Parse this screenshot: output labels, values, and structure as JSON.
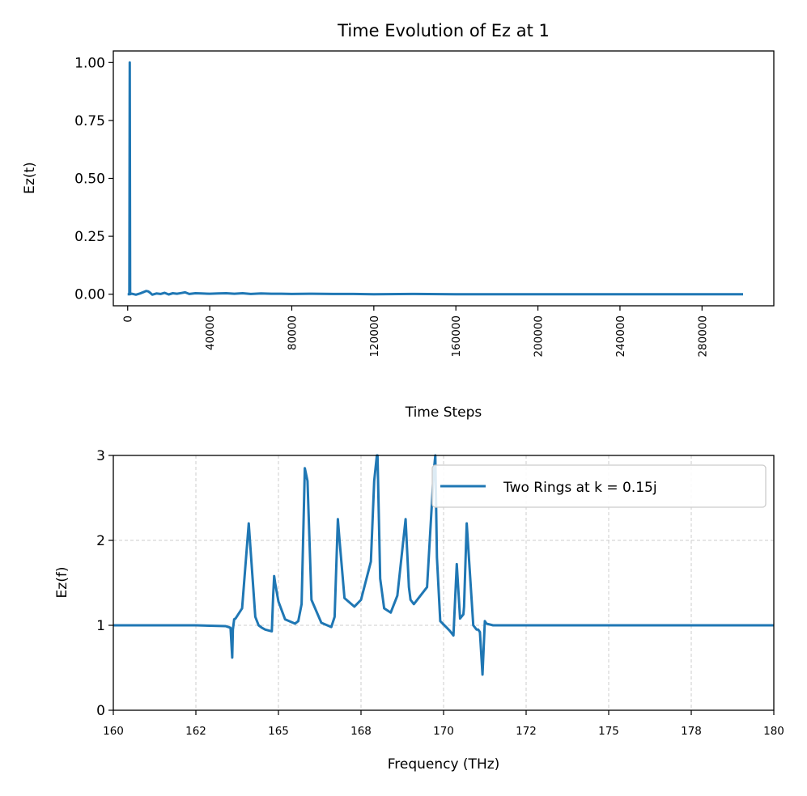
{
  "colors": {
    "line": "#1f77b4",
    "grid": "#cccccc",
    "axes": "#000000",
    "background": "#ffffff"
  },
  "chart_data": [
    {
      "type": "line",
      "title": "Time Evolution of Ez at 1",
      "xlabel": "Time Steps",
      "ylabel": "Ez(t)",
      "xlim": [
        -7000,
        315000
      ],
      "ylim": [
        -0.05,
        1.05
      ],
      "xticks": [
        0,
        40000,
        80000,
        120000,
        160000,
        200000,
        240000,
        280000
      ],
      "xtick_labels": [
        "0",
        "40000",
        "80000",
        "120000",
        "160000",
        "200000",
        "240000",
        "280000"
      ],
      "xtick_rotation": 90,
      "yticks": [
        0,
        0.25,
        0.5,
        0.75,
        1.0
      ],
      "ytick_labels": [
        "0.00",
        "0.25",
        "0.50",
        "0.75",
        "1.00"
      ],
      "grid": false,
      "series": [
        {
          "x": [
            0,
            800,
            1000,
            1200,
            2000,
            4000,
            6000,
            8000,
            9000,
            10000,
            11000,
            12000,
            14000,
            16000,
            18000,
            20000,
            22000,
            24000,
            26000,
            28000,
            30000,
            33000,
            36000,
            40000,
            44000,
            48000,
            52000,
            56000,
            60000,
            65000,
            70000,
            75000,
            80000,
            90000,
            100000,
            110000,
            120000,
            140000,
            160000,
            200000,
            240000,
            280000,
            300000
          ],
          "y": [
            0,
            0,
            1.0,
            0,
            0.002,
            -0.002,
            0.003,
            0.01,
            0.014,
            0.012,
            0.006,
            -0.002,
            0.003,
            0.001,
            0.006,
            -0.001,
            0.004,
            0.002,
            0.005,
            0.008,
            0.001,
            0.004,
            0.003,
            0.002,
            0.003,
            0.004,
            0.002,
            0.004,
            0.001,
            0.003,
            0.002,
            0.002,
            0.001,
            0.002,
            0.001,
            0.001,
            0.0,
            0.001,
            0.0,
            0.0,
            0.0,
            0.0,
            0.0
          ]
        }
      ]
    },
    {
      "type": "line",
      "title": "",
      "xlabel": "Frequency (THz)",
      "ylabel": "Ez(f)",
      "xlim": [
        160,
        180
      ],
      "ylim": [
        0,
        3
      ],
      "xticks": [
        160,
        162.5,
        165,
        167.5,
        170,
        172.5,
        175,
        177.5,
        180
      ],
      "xtick_labels": [
        "160",
        "162",
        "165",
        "168",
        "170",
        "172",
        "175",
        "178",
        "180"
      ],
      "yticks": [
        0,
        1,
        2,
        3
      ],
      "ytick_labels": [
        "0",
        "1",
        "2",
        "3"
      ],
      "grid": true,
      "legend_position": "top-right",
      "series": [
        {
          "name": "Two Rings at k = 0.15j",
          "x": [
            160,
            162.5,
            163.4,
            163.55,
            163.6,
            163.62,
            163.66,
            163.7,
            163.9,
            164.1,
            164.3,
            164.4,
            164.5,
            164.6,
            164.8,
            164.84,
            164.87,
            164.9,
            165.0,
            165.2,
            165.5,
            165.6,
            165.7,
            165.8,
            165.88,
            166.0,
            166.3,
            166.6,
            166.7,
            166.8,
            166.85,
            167.0,
            167.3,
            167.5,
            167.8,
            167.9,
            167.98,
            168.0,
            168.08,
            168.2,
            168.4,
            168.6,
            168.85,
            168.95,
            169.0,
            169.1,
            169.5,
            169.7,
            169.75,
            169.8,
            169.9,
            170.1,
            170.2,
            170.3,
            170.4,
            170.5,
            170.6,
            170.62,
            170.7,
            170.9,
            171.0,
            171.05,
            171.1,
            171.18,
            171.25,
            171.3,
            171.5,
            172,
            175,
            180
          ],
          "y": [
            1,
            1,
            0.99,
            0.97,
            0.62,
            0.95,
            1.07,
            1.08,
            1.2,
            2.2,
            1.1,
            1.0,
            0.97,
            0.95,
            0.93,
            1.35,
            1.58,
            1.5,
            1.28,
            1.07,
            1.02,
            1.05,
            1.25,
            2.85,
            2.7,
            1.3,
            1.03,
            0.98,
            1.1,
            2.25,
            2.0,
            1.32,
            1.22,
            1.3,
            1.75,
            2.7,
            3.0,
            3.0,
            1.55,
            1.2,
            1.15,
            1.35,
            2.25,
            1.45,
            1.3,
            1.25,
            1.45,
            2.8,
            3.05,
            1.8,
            1.05,
            0.97,
            0.93,
            0.88,
            1.72,
            1.08,
            1.13,
            1.22,
            2.2,
            1.0,
            0.95,
            0.95,
            0.92,
            0.42,
            1.05,
            1.02,
            1.0,
            1.0,
            1.0,
            1.0
          ]
        }
      ]
    }
  ]
}
